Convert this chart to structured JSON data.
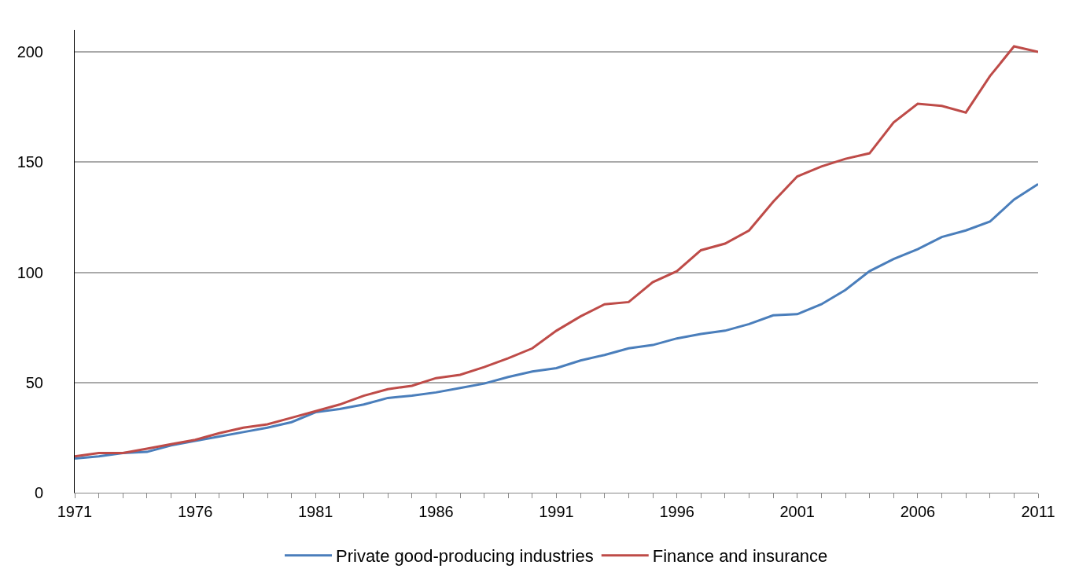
{
  "chart_data": {
    "type": "line",
    "x": [
      1971,
      1972,
      1973,
      1974,
      1975,
      1976,
      1977,
      1978,
      1979,
      1980,
      1981,
      1982,
      1983,
      1984,
      1985,
      1986,
      1987,
      1988,
      1989,
      1990,
      1991,
      1992,
      1993,
      1994,
      1995,
      1996,
      1997,
      1998,
      1999,
      2000,
      2001,
      2002,
      2003,
      2004,
      2005,
      2006,
      2007,
      2008,
      2009,
      2010,
      2011
    ],
    "series": [
      {
        "name": "Private good-producing industries",
        "color": "#4a7ebb",
        "values": [
          15.5,
          16.5,
          18,
          18.5,
          21.5,
          23.5,
          25.5,
          27.5,
          29.5,
          32,
          36.5,
          38,
          40,
          43,
          44,
          45.5,
          47.5,
          49.5,
          52.5,
          55,
          56.5,
          60,
          62.5,
          65.5,
          67,
          70,
          72,
          73.5,
          76.5,
          80.5,
          81,
          85.5,
          92,
          100.5,
          106,
          110.5,
          116,
          119,
          123,
          133,
          140
        ]
      },
      {
        "name": "Finance and insurance",
        "color": "#be4b48",
        "values": [
          16.5,
          18,
          18,
          20,
          22,
          24,
          27,
          29.5,
          31,
          34,
          37,
          40,
          44,
          47,
          48.5,
          52,
          53.5,
          57,
          61,
          65.5,
          73.5,
          80,
          85.5,
          86.5,
          95.5,
          100.5,
          110,
          113,
          119,
          132,
          143.5,
          148,
          151.5,
          154,
          168,
          176.5,
          175.5,
          172.5,
          189,
          202.5,
          200
        ]
      }
    ],
    "xlim": [
      1971,
      2011
    ],
    "xticks": [
      1971,
      1976,
      1981,
      1986,
      1991,
      1996,
      2001,
      2006,
      2011
    ],
    "ylim": [
      0,
      210
    ],
    "yticks": [
      0,
      50,
      100,
      150,
      200
    ],
    "grid": "y",
    "legend": "bottom",
    "marker": "none",
    "line_style": "solid"
  }
}
